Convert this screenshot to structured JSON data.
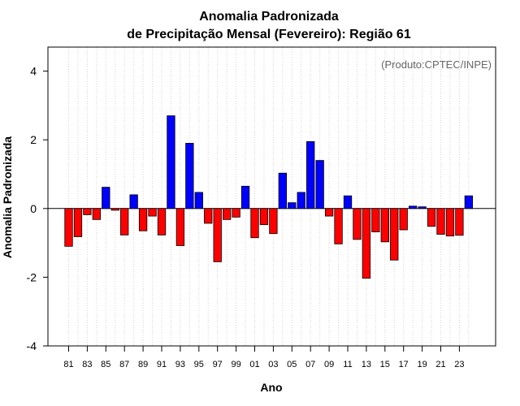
{
  "chart_data": {
    "type": "bar",
    "title": "Anomalia Padronizada",
    "subtitle": "de Precipitação Mensal (Fevereiro): Região 61",
    "xlabel": "Ano",
    "ylabel": "Anomalia Padronizada",
    "annotation": "(Produto:CPTEC/INPE)",
    "ylim": [
      -4,
      4.7
    ],
    "yticks": [
      -4,
      -2,
      0,
      2,
      4
    ],
    "grid": "vertical dotted",
    "positive_color": "#0000ff",
    "negative_color": "#ff0000",
    "categories": [
      "81",
      "82",
      "83",
      "84",
      "85",
      "86",
      "87",
      "88",
      "89",
      "90",
      "91",
      "92",
      "93",
      "94",
      "95",
      "96",
      "97",
      "98",
      "99",
      "00",
      "01",
      "02",
      "03",
      "04",
      "05",
      "06",
      "07",
      "08",
      "09",
      "10",
      "11",
      "12",
      "13",
      "14",
      "15",
      "16",
      "17",
      "18",
      "19",
      "20",
      "21",
      "22",
      "23",
      "24"
    ],
    "tick_labels": [
      "81",
      "83",
      "85",
      "87",
      "89",
      "91",
      "93",
      "95",
      "97",
      "99",
      "01",
      "03",
      "05",
      "07",
      "09",
      "11",
      "13",
      "15",
      "17",
      "19",
      "21",
      "23"
    ],
    "values": [
      -1.1,
      -0.82,
      -0.18,
      -0.32,
      0.62,
      -0.05,
      -0.77,
      0.4,
      -0.65,
      -0.22,
      -0.77,
      2.7,
      -1.08,
      1.9,
      0.47,
      -0.43,
      -1.55,
      -0.32,
      -0.25,
      0.65,
      -0.85,
      -0.47,
      -0.73,
      1.03,
      0.17,
      0.47,
      1.95,
      1.4,
      -0.22,
      -1.03,
      0.37,
      -0.9,
      -2.03,
      -0.68,
      -0.97,
      -1.5,
      -0.62,
      0.07,
      0.05,
      -0.52,
      -0.75,
      -0.8,
      -0.78,
      0.37
    ]
  }
}
